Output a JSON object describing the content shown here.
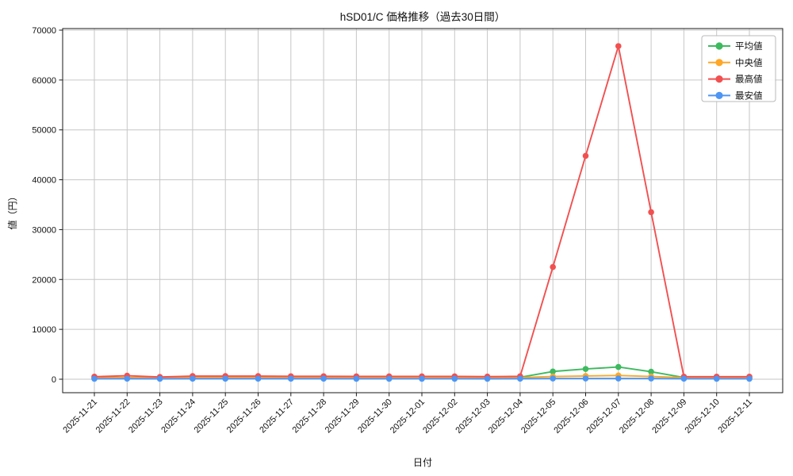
{
  "chart_data": {
    "type": "line",
    "title": "hSD01/C 価格推移（過去30日間）",
    "xlabel": "日付",
    "ylabel": "値（円）",
    "ylim": [
      0,
      70000
    ],
    "yticks": [
      0,
      10000,
      20000,
      30000,
      40000,
      50000,
      60000,
      70000
    ],
    "grid": true,
    "legend_position": "upper right",
    "categories": [
      "2025-11-21",
      "2025-11-22",
      "2025-11-23",
      "2025-11-24",
      "2025-11-25",
      "2025-11-26",
      "2025-11-27",
      "2025-11-28",
      "2025-11-29",
      "2025-11-30",
      "2025-12-01",
      "2025-12-02",
      "2025-12-03",
      "2025-12-04",
      "2025-12-05",
      "2025-12-06",
      "2025-12-07",
      "2025-12-08",
      "2025-12-09",
      "2025-12-10",
      "2025-12-11"
    ],
    "series": [
      {
        "name": "平均値",
        "color": "#3dba5f",
        "values": [
          280,
          320,
          280,
          320,
          320,
          320,
          300,
          300,
          290,
          290,
          290,
          290,
          280,
          380,
          1550,
          2050,
          2450,
          1500,
          350,
          300,
          300
        ]
      },
      {
        "name": "中央値",
        "color": "#ffa726",
        "values": [
          300,
          350,
          300,
          350,
          350,
          350,
          320,
          320,
          300,
          300,
          300,
          300,
          290,
          330,
          550,
          650,
          750,
          550,
          320,
          300,
          300
        ]
      },
      {
        "name": "最高値",
        "color": "#f25050",
        "values": [
          500,
          700,
          450,
          620,
          620,
          620,
          580,
          580,
          560,
          560,
          560,
          560,
          520,
          580,
          22500,
          44800,
          66800,
          33500,
          500,
          500,
          500
        ]
      },
      {
        "name": "最安値",
        "color": "#4d96f5",
        "values": [
          80,
          100,
          80,
          100,
          100,
          100,
          100,
          100,
          90,
          90,
          90,
          90,
          80,
          100,
          150,
          150,
          150,
          150,
          100,
          90,
          90
        ]
      }
    ],
    "colors": {
      "grid": "#c6c6c6",
      "frame": "#1a1a1a",
      "text": "#111111",
      "legend_border": "#b8b8b8",
      "background": "#ffffff"
    }
  }
}
